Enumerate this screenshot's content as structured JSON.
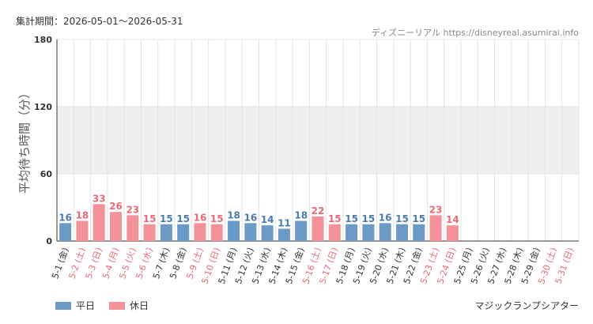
{
  "header": {
    "period": "集計期間：2026-05-01～2026-05-31",
    "credit": "ディズニーリアル https://disneyreal.asumirai.info"
  },
  "footer": {
    "attraction": "マジックランプシアター"
  },
  "colors": {
    "weekday": "#6b9ac6",
    "holiday": "#f4929a",
    "weekday_label": "#4a7bb0",
    "holiday_label": "#e86a78",
    "band": "#efefef",
    "grid": "#e4e4e4",
    "axis": "#333333"
  },
  "chart_data": {
    "type": "bar",
    "ylabel": "平均待ち時間（分）",
    "ylim": [
      0,
      180
    ],
    "yticks": [
      0,
      60,
      120,
      180
    ],
    "band": [
      60,
      120
    ],
    "categories": [
      "5-1 (金)",
      "5-2 (土)",
      "5-3 (日)",
      "5-4 (月)",
      "5-5 (火)",
      "5-6 (水)",
      "5-7 (木)",
      "5-8 (金)",
      "5-9 (土)",
      "5-10 (日)",
      "5-11 (月)",
      "5-12 (火)",
      "5-13 (水)",
      "5-14 (木)",
      "5-15 (金)",
      "5-16 (土)",
      "5-17 (日)",
      "5-18 (月)",
      "5-19 (火)",
      "5-20 (水)",
      "5-21 (木)",
      "5-22 (金)",
      "5-23 (土)",
      "5-24 (日)",
      "5-25 (月)",
      "5-26 (火)",
      "5-27 (水)",
      "5-28 (木)",
      "5-29 (金)",
      "5-30 (土)",
      "5-31 (日)"
    ],
    "values": [
      16,
      18,
      33,
      26,
      23,
      15,
      15,
      15,
      16,
      15,
      18,
      16,
      14,
      11,
      18,
      22,
      15,
      15,
      15,
      16,
      15,
      15,
      23,
      14,
      null,
      null,
      null,
      null,
      null,
      null,
      null
    ],
    "day_type": [
      "weekday",
      "holiday",
      "holiday",
      "holiday",
      "holiday",
      "holiday",
      "weekday",
      "weekday",
      "holiday",
      "holiday",
      "weekday",
      "weekday",
      "weekday",
      "weekday",
      "weekday",
      "holiday",
      "holiday",
      "weekday",
      "weekday",
      "weekday",
      "weekday",
      "weekday",
      "holiday",
      "holiday",
      "weekday",
      "weekday",
      "weekday",
      "weekday",
      "weekday",
      "holiday",
      "holiday"
    ],
    "legend": {
      "weekday": "平日",
      "holiday": "休日"
    },
    "legend_position": "bottom-left",
    "grid": true
  }
}
